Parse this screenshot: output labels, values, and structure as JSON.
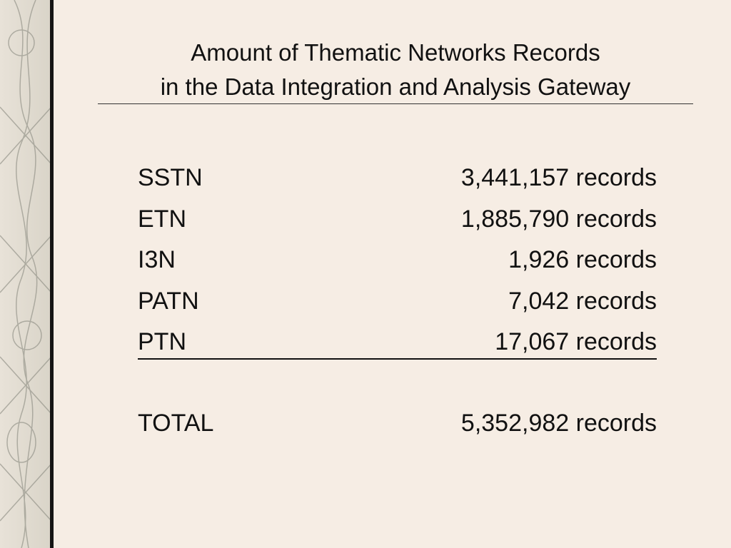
{
  "title": {
    "line1": "Amount of Thematic Networks Records",
    "line2": "in the Data Integration and Analysis Gateway"
  },
  "table": {
    "rows": [
      [
        "SSTN",
        "3,441,157 records"
      ],
      [
        "ETN",
        "1,885,790 records"
      ],
      [
        "I3N",
        "1,926 records"
      ],
      [
        "PATN",
        "7,042 records"
      ],
      [
        "PTN",
        "17,067 records"
      ]
    ],
    "total": [
      "TOTAL",
      "5,352,982 records"
    ]
  }
}
